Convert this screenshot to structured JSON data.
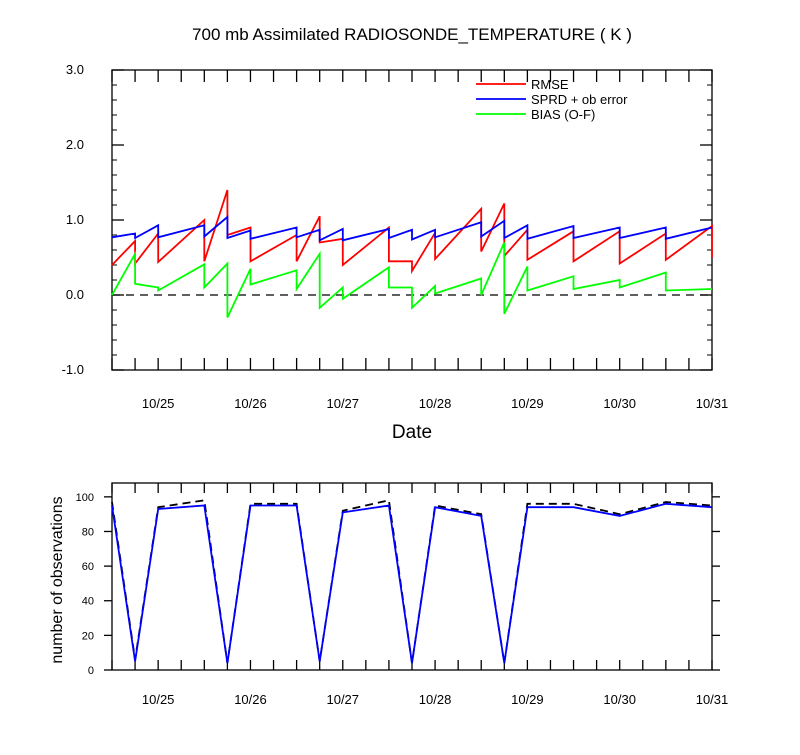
{
  "chart_data": [
    {
      "type": "line",
      "title": "700 mb Assimilated RADIOSONDE_TEMPERATURE ( K )",
      "xlabel": "Date",
      "ylabel": "",
      "ylim": [
        -1.0,
        3.0
      ],
      "yticks": [
        "-1.0",
        "0.0",
        "1.0",
        "2.0",
        "3.0"
      ],
      "xlim": [
        0,
        6.5
      ],
      "xticklabels": [
        "10/25",
        "10/26",
        "10/27",
        "10/28",
        "10/29",
        "10/30",
        "10/31"
      ],
      "grid": false,
      "legend_position": "top-right",
      "reference_line": 0.0,
      "series": [
        {
          "name": "RMSE",
          "color": "#ff0000",
          "points": [
            [
              0,
              0.4
            ],
            [
              0.25,
              0.72
            ],
            [
              0.25,
              0.42
            ],
            [
              0.5,
              0.82
            ],
            [
              0.5,
              0.44
            ],
            [
              1.0,
              1.0
            ],
            [
              1.0,
              0.45
            ],
            [
              1.25,
              1.4
            ],
            [
              1.25,
              0.8
            ],
            [
              1.5,
              0.9
            ],
            [
              1.5,
              0.45
            ],
            [
              2.0,
              0.8
            ],
            [
              2.0,
              0.45
            ],
            [
              2.25,
              1.05
            ],
            [
              2.25,
              0.7
            ],
            [
              2.5,
              0.75
            ],
            [
              2.5,
              0.4
            ],
            [
              3.0,
              0.9
            ],
            [
              3.0,
              0.45
            ],
            [
              3.25,
              0.45
            ],
            [
              3.25,
              0.32
            ],
            [
              3.5,
              0.83
            ],
            [
              3.5,
              0.48
            ],
            [
              4.0,
              1.15
            ],
            [
              4.0,
              0.58
            ],
            [
              4.25,
              1.22
            ],
            [
              4.25,
              0.52
            ],
            [
              4.5,
              0.87
            ],
            [
              4.5,
              0.47
            ],
            [
              5.0,
              0.85
            ],
            [
              5.0,
              0.45
            ],
            [
              5.5,
              0.85
            ],
            [
              5.5,
              0.42
            ],
            [
              6.0,
              0.82
            ],
            [
              6.0,
              0.47
            ],
            [
              6.5,
              0.92
            ],
            [
              6.5,
              0.5
            ]
          ]
        },
        {
          "name": "SPRD + ob error",
          "color": "#0000ff",
          "points": [
            [
              0,
              0.77
            ],
            [
              0.25,
              0.82
            ],
            [
              0.25,
              0.76
            ],
            [
              0.5,
              0.93
            ],
            [
              0.5,
              0.77
            ],
            [
              1.0,
              0.93
            ],
            [
              1.0,
              0.78
            ],
            [
              1.25,
              1.04
            ],
            [
              1.25,
              0.76
            ],
            [
              1.5,
              0.86
            ],
            [
              1.5,
              0.75
            ],
            [
              2.0,
              0.9
            ],
            [
              2.0,
              0.77
            ],
            [
              2.25,
              0.87
            ],
            [
              2.25,
              0.73
            ],
            [
              2.5,
              0.88
            ],
            [
              2.5,
              0.73
            ],
            [
              3.0,
              0.88
            ],
            [
              3.0,
              0.76
            ],
            [
              3.25,
              0.87
            ],
            [
              3.25,
              0.74
            ],
            [
              3.5,
              0.87
            ],
            [
              3.5,
              0.77
            ],
            [
              4.0,
              0.97
            ],
            [
              4.0,
              0.78
            ],
            [
              4.25,
              0.99
            ],
            [
              4.25,
              0.76
            ],
            [
              4.5,
              0.93
            ],
            [
              4.5,
              0.75
            ],
            [
              5.0,
              0.92
            ],
            [
              5.0,
              0.76
            ],
            [
              5.5,
              0.9
            ],
            [
              5.5,
              0.76
            ],
            [
              6.0,
              0.9
            ],
            [
              6.0,
              0.75
            ],
            [
              6.5,
              0.9
            ]
          ]
        },
        {
          "name": "BIAS (O-F)",
          "color": "#00ff00",
          "points": [
            [
              0,
              0.0
            ],
            [
              0.25,
              0.55
            ],
            [
              0.25,
              0.15
            ],
            [
              0.5,
              0.1
            ],
            [
              0.5,
              0.06
            ],
            [
              1.0,
              0.41
            ],
            [
              1.0,
              0.1
            ],
            [
              1.25,
              0.42
            ],
            [
              1.25,
              -0.3
            ],
            [
              1.5,
              0.35
            ],
            [
              1.5,
              0.14
            ],
            [
              2.0,
              0.33
            ],
            [
              2.0,
              0.08
            ],
            [
              2.25,
              0.55
            ],
            [
              2.25,
              -0.17
            ],
            [
              2.5,
              0.1
            ],
            [
              2.5,
              -0.05
            ],
            [
              3.0,
              0.37
            ],
            [
              3.0,
              0.1
            ],
            [
              3.25,
              0.1
            ],
            [
              3.25,
              -0.17
            ],
            [
              3.5,
              0.12
            ],
            [
              3.5,
              0.02
            ],
            [
              4.0,
              0.22
            ],
            [
              4.0,
              0.0
            ],
            [
              4.25,
              0.7
            ],
            [
              4.25,
              -0.25
            ],
            [
              4.5,
              0.38
            ],
            [
              4.5,
              0.06
            ],
            [
              5.0,
              0.25
            ],
            [
              5.0,
              0.08
            ],
            [
              5.5,
              0.2
            ],
            [
              5.5,
              0.1
            ],
            [
              6.0,
              0.3
            ],
            [
              6.0,
              0.06
            ],
            [
              6.5,
              0.08
            ]
          ]
        }
      ]
    },
    {
      "type": "line",
      "title": "",
      "xlabel": "",
      "ylabel": "number of observations",
      "ylim": [
        0,
        108
      ],
      "yticks": [
        "0",
        "20",
        "40",
        "60",
        "80",
        "100"
      ],
      "xlim": [
        0,
        6.5
      ],
      "xticklabels": [
        "10/25",
        "10/26",
        "10/27",
        "10/28",
        "10/29",
        "10/30",
        "10/31"
      ],
      "grid": false,
      "series": [
        {
          "name": "",
          "color": "#000000",
          "dash": true,
          "points": [
            [
              0,
              97
            ],
            [
              0.25,
              6
            ],
            [
              0.5,
              94
            ],
            [
              1.0,
              98
            ],
            [
              1.25,
              4
            ],
            [
              1.5,
              96
            ],
            [
              2.0,
              96
            ],
            [
              2.25,
              5
            ],
            [
              2.5,
              92
            ],
            [
              3.0,
              98
            ],
            [
              3.25,
              4
            ],
            [
              3.5,
              95
            ],
            [
              4.0,
              90
            ],
            [
              4.25,
              4
            ],
            [
              4.5,
              96
            ],
            [
              5.0,
              96
            ],
            [
              5.5,
              90
            ],
            [
              6.0,
              97
            ],
            [
              6.5,
              95
            ]
          ]
        },
        {
          "name": "",
          "color": "#0000ff",
          "dash": false,
          "points": [
            [
              0,
              95
            ],
            [
              0.25,
              5
            ],
            [
              0.5,
              93
            ],
            [
              1.0,
              95
            ],
            [
              1.25,
              4
            ],
            [
              1.5,
              95
            ],
            [
              2.0,
              95
            ],
            [
              2.25,
              5
            ],
            [
              2.5,
              91
            ],
            [
              3.0,
              95
            ],
            [
              3.25,
              4
            ],
            [
              3.5,
              94
            ],
            [
              4.0,
              89
            ],
            [
              4.25,
              4
            ],
            [
              4.5,
              94
            ],
            [
              5.0,
              94
            ],
            [
              5.5,
              89
            ],
            [
              6.0,
              96
            ],
            [
              6.5,
              94
            ]
          ]
        }
      ]
    }
  ]
}
